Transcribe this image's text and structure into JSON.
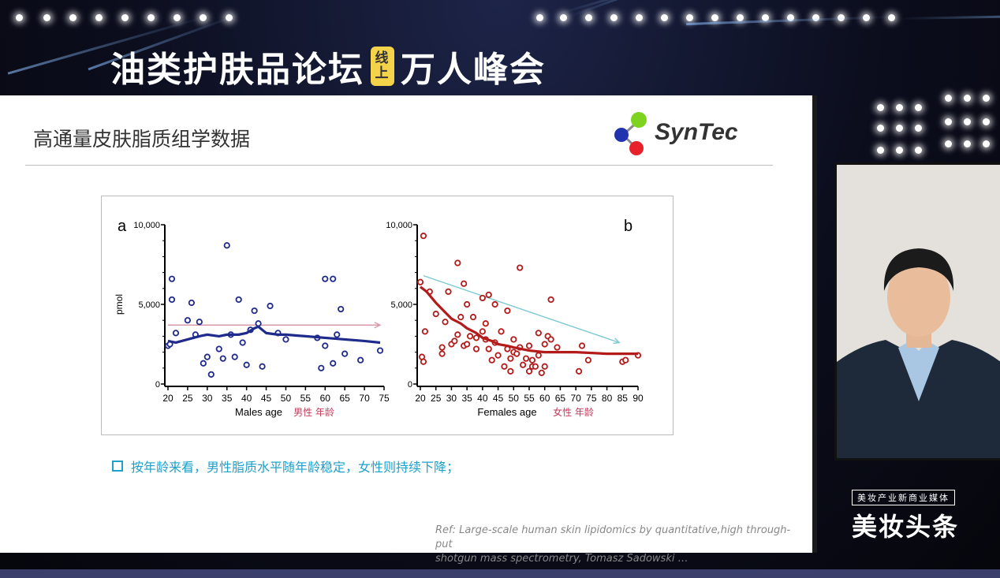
{
  "event": {
    "title_left": "油类护肤品论坛",
    "tag_top": "线",
    "tag_bottom": "上",
    "title_right": "万人峰会"
  },
  "slide": {
    "title": "高通量皮肤脂质组学数据",
    "logo_text": "SynTec",
    "bullet": "按年龄来看，男性脂质水平随年龄稳定，女性则持续下降；",
    "ref_line1": "Ref: Large-scale human skin lipidomics by quantitative,high through-put",
    "ref_line2": "shotgun mass spectrometry,    Tomasz Sadowski …"
  },
  "brand": {
    "top": "美妆产业新商业媒体",
    "main": "美妆头条"
  },
  "colors": {
    "male": "#1f2b8c",
    "female": "#b31b1b",
    "arrow_male": "#d99aa8",
    "arrow_female": "#7ccad0",
    "accent": "#1ea0c9"
  },
  "chart_data": [
    {
      "type": "scatter",
      "panel_label": "a",
      "xlabel": "Males age",
      "xlabel_cn": "男性  年龄",
      "ylabel": "pmol",
      "xlim": [
        20,
        75
      ],
      "ylim": [
        0,
        10000
      ],
      "xticks": [
        "20",
        "25",
        "30",
        "35",
        "40",
        "45",
        "50",
        "55",
        "60",
        "65",
        "70",
        "75"
      ],
      "yticks": [
        "0",
        "5,000",
        "10,000"
      ],
      "points": [
        [
          20,
          2400
        ],
        [
          20.5,
          2500
        ],
        [
          21,
          6600
        ],
        [
          21,
          5300
        ],
        [
          22,
          3200
        ],
        [
          25,
          4000
        ],
        [
          26,
          5100
        ],
        [
          27,
          3100
        ],
        [
          28,
          3900
        ],
        [
          29,
          1300
        ],
        [
          30,
          1700
        ],
        [
          31,
          600
        ],
        [
          33,
          2200
        ],
        [
          34,
          1600
        ],
        [
          35,
          8700
        ],
        [
          36,
          3100
        ],
        [
          37,
          1700
        ],
        [
          38,
          5300
        ],
        [
          39,
          2600
        ],
        [
          40,
          1200
        ],
        [
          41,
          3400
        ],
        [
          42,
          4600
        ],
        [
          43,
          3800
        ],
        [
          44,
          1100
        ],
        [
          46,
          4900
        ],
        [
          48,
          3200
        ],
        [
          50,
          2800
        ],
        [
          58,
          2900
        ],
        [
          59,
          1000
        ],
        [
          60,
          2400
        ],
        [
          60,
          6600
        ],
        [
          62,
          6600
        ],
        [
          62,
          1300
        ],
        [
          63,
          3100
        ],
        [
          64,
          4700
        ],
        [
          65,
          1900
        ],
        [
          69,
          1500
        ],
        [
          74,
          2100
        ]
      ],
      "trend_x": [
        20,
        22,
        25,
        28,
        30,
        33,
        35,
        38,
        40,
        42,
        43,
        45,
        48,
        50,
        55,
        60,
        65,
        70,
        74
      ],
      "trend_y": [
        2700,
        2600,
        2800,
        3000,
        3100,
        3000,
        3100,
        3100,
        3200,
        3500,
        3600,
        3200,
        3100,
        3100,
        3000,
        2900,
        2800,
        2700,
        2600
      ],
      "arrow": {
        "x": [
          20,
          74
        ],
        "y": [
          3700,
          3700
        ]
      }
    },
    {
      "type": "scatter",
      "panel_label": "b",
      "xlabel": "Females age",
      "xlabel_cn": "女性  年龄",
      "ylabel": "",
      "xlim": [
        20,
        90
      ],
      "ylim": [
        0,
        10000
      ],
      "xticks": [
        "20",
        "25",
        "30",
        "35",
        "40",
        "45",
        "50",
        "55",
        "60",
        "65",
        "70",
        "75",
        "80",
        "85",
        "90"
      ],
      "yticks": [
        "0",
        "5,000",
        "10,000"
      ],
      "points": [
        [
          20,
          6400
        ],
        [
          20.5,
          1700
        ],
        [
          21,
          9300
        ],
        [
          21,
          1400
        ],
        [
          21.5,
          3300
        ],
        [
          23,
          5800
        ],
        [
          25,
          4400
        ],
        [
          27,
          2300
        ],
        [
          27,
          1900
        ],
        [
          28,
          3900
        ],
        [
          29,
          5800
        ],
        [
          30,
          2500
        ],
        [
          31,
          2700
        ],
        [
          32,
          3100
        ],
        [
          32,
          7600
        ],
        [
          33,
          4200
        ],
        [
          34,
          6300
        ],
        [
          34,
          2400
        ],
        [
          35,
          2500
        ],
        [
          35,
          5000
        ],
        [
          36,
          3000
        ],
        [
          37,
          4200
        ],
        [
          38,
          2900
        ],
        [
          38,
          2200
        ],
        [
          40,
          5400
        ],
        [
          40,
          3300
        ],
        [
          41,
          3800
        ],
        [
          41,
          2800
        ],
        [
          42,
          5600
        ],
        [
          42,
          2200
        ],
        [
          43,
          1500
        ],
        [
          44,
          2600
        ],
        [
          44,
          5000
        ],
        [
          45,
          1800
        ],
        [
          46,
          3300
        ],
        [
          47,
          1100
        ],
        [
          48,
          2200
        ],
        [
          48,
          4600
        ],
        [
          49,
          1600
        ],
        [
          49,
          800
        ],
        [
          50,
          2000
        ],
        [
          50,
          2800
        ],
        [
          51,
          1900
        ],
        [
          52,
          7300
        ],
        [
          52,
          2300
        ],
        [
          53,
          1200
        ],
        [
          54,
          1600
        ],
        [
          55,
          2400
        ],
        [
          55,
          800
        ],
        [
          56,
          1100
        ],
        [
          56,
          1500
        ],
        [
          57,
          1100
        ],
        [
          58,
          3200
        ],
        [
          58,
          1800
        ],
        [
          59,
          700
        ],
        [
          60,
          1100
        ],
        [
          60,
          2500
        ],
        [
          61,
          3000
        ],
        [
          62,
          2800
        ],
        [
          62,
          5300
        ],
        [
          64,
          2300
        ],
        [
          71,
          800
        ],
        [
          72,
          2400
        ],
        [
          74,
          1500
        ],
        [
          85,
          1400
        ],
        [
          86,
          1500
        ],
        [
          90,
          1800
        ]
      ],
      "trend_x": [
        20,
        22,
        25,
        28,
        30,
        33,
        35,
        38,
        40,
        43,
        45,
        48,
        50,
        55,
        60,
        65,
        70,
        80,
        90
      ],
      "trend_y": [
        6100,
        5800,
        5100,
        4500,
        4100,
        3800,
        3500,
        3200,
        2900,
        2700,
        2500,
        2400,
        2300,
        2100,
        2000,
        2000,
        2000,
        1900,
        1900
      ],
      "arrow": {
        "x": [
          21,
          84
        ],
        "y": [
          6800,
          2600
        ]
      }
    }
  ]
}
